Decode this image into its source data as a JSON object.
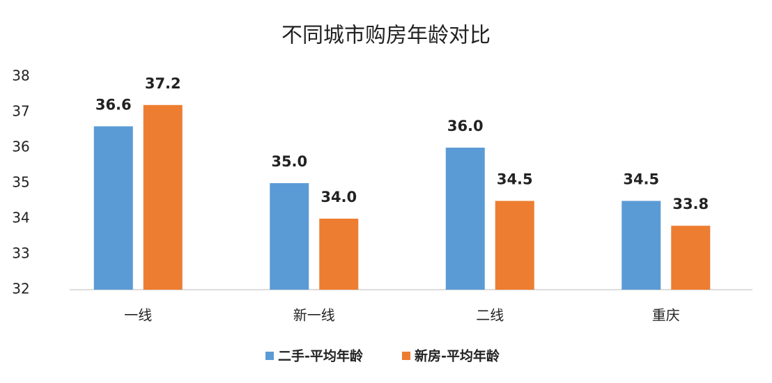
{
  "chart_data": {
    "type": "bar",
    "title": "不同城市购房年龄对比",
    "categories": [
      "一线",
      "新一线",
      "二线",
      "重庆"
    ],
    "series": [
      {
        "name": "二手-平均年龄",
        "color": "#5b9bd5",
        "values": [
          36.6,
          35,
          36,
          34.5
        ],
        "value_labels": [
          "36.6",
          "35.0",
          "36.0",
          "34.5"
        ]
      },
      {
        "name": "新房-平均年龄",
        "color": "#ed7d31",
        "values": [
          37.2,
          34,
          34.5,
          33.8
        ],
        "value_labels": [
          "37.2",
          "34.0",
          "34.5",
          "33.8"
        ]
      }
    ],
    "ylim": [
      32,
      38
    ],
    "yticks": [
      32,
      33,
      34,
      35,
      36,
      37,
      38
    ],
    "grid": false,
    "legend": "bottom"
  }
}
